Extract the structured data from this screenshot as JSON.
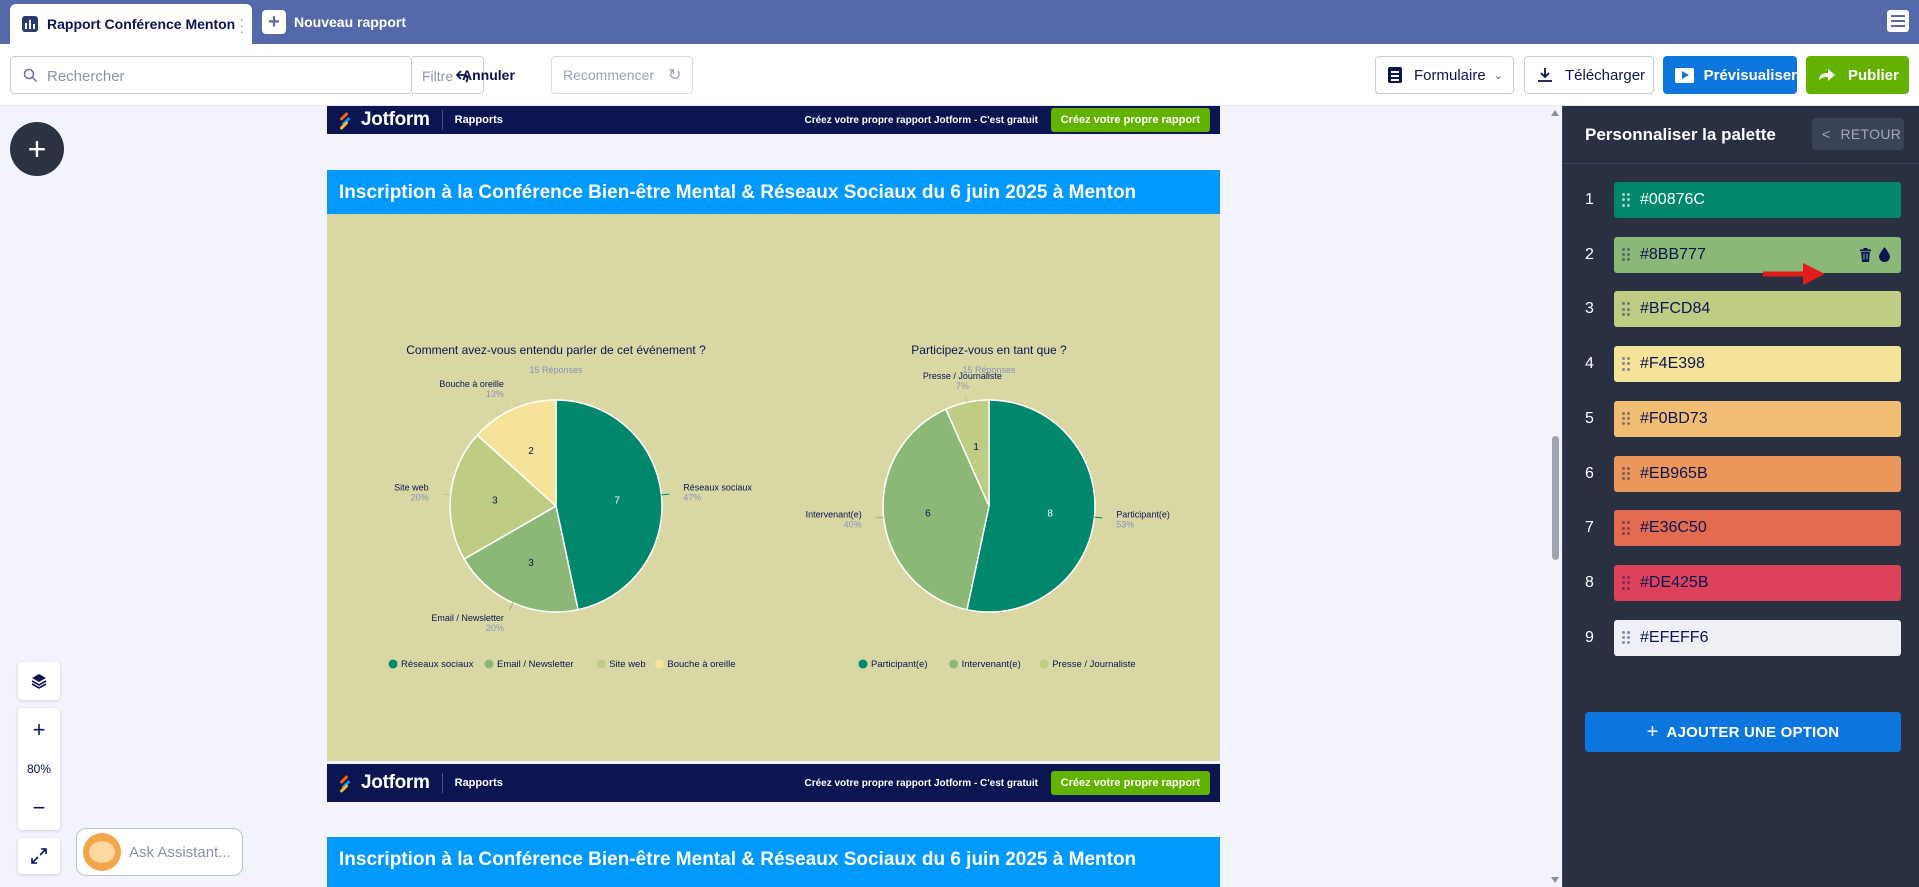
{
  "tabs": {
    "active_title": "Rapport Conférence Menton",
    "new_report_label": "Nouveau rapport"
  },
  "toolbar": {
    "search_placeholder": "Rechercher",
    "filter_label": "Filtre",
    "undo_label": "Annuler",
    "redo_label": "Recommencer",
    "form_label": "Formulaire",
    "download_label": "Télécharger",
    "preview_label": "Prévisualiser",
    "publish_label": "Publier"
  },
  "canvas": {
    "zoom_level": "80%",
    "assistant_label": "Ask Assistant...",
    "jotform_logo": "Jotform",
    "reports_label": "Rapports",
    "cta_text": "Créez votre propre rapport Jotform - C'est gratuit",
    "cta_button": "Créez votre propre rapport",
    "report_title": "Inscription à la Conférence Bien-être Mental & Réseaux Sociaux du 6 juin 2025 à Menton"
  },
  "chart_data": [
    {
      "type": "pie",
      "title": "Comment avez-vous entendu parler de cet événement ?",
      "subtitle": "15 Réponses",
      "categories": [
        "Réseaux sociaux",
        "Email / Newsletter",
        "Site web",
        "Bouche à oreille"
      ],
      "values": [
        7,
        3,
        3,
        2
      ],
      "percent_labels": [
        "47%",
        "20%",
        "20%",
        "13%"
      ],
      "colors": [
        "#00876C",
        "#8BB777",
        "#BFCD84",
        "#F4E398"
      ],
      "legend": "bottom"
    },
    {
      "type": "pie",
      "title": "Participez-vous en tant que ?",
      "subtitle": "15 Réponses",
      "categories": [
        "Participant(e)",
        "Intervenant(e)",
        "Presse / Journaliste"
      ],
      "values": [
        8,
        6,
        1
      ],
      "percent_labels": [
        "53%",
        "40%",
        "7%"
      ],
      "colors": [
        "#00876C",
        "#8BB777",
        "#BFCD84"
      ],
      "legend": "bottom"
    }
  ],
  "panel": {
    "title": "Personnaliser la palette",
    "back_label": "RETOUR",
    "add_option_label": "AJOUTER UNE OPTION",
    "palette": [
      {
        "index": "1",
        "hex": "#00876C",
        "color": "#00876C"
      },
      {
        "index": "2",
        "hex": "#8BB777",
        "color": "#8BB777"
      },
      {
        "index": "3",
        "hex": "#BFCD84",
        "color": "#BFCD84"
      },
      {
        "index": "4",
        "hex": "#F4E398",
        "color": "#F4E398"
      },
      {
        "index": "5",
        "hex": "#F0BD73",
        "color": "#F0BD73"
      },
      {
        "index": "6",
        "hex": "#EB965B",
        "color": "#EB965B"
      },
      {
        "index": "7",
        "hex": "#E36C50",
        "color": "#E36C50"
      },
      {
        "index": "8",
        "hex": "#DE425B",
        "color": "#DE425B"
      },
      {
        "index": "9",
        "hex": "#EFEFF6",
        "color": "#EFEFF6"
      }
    ]
  }
}
